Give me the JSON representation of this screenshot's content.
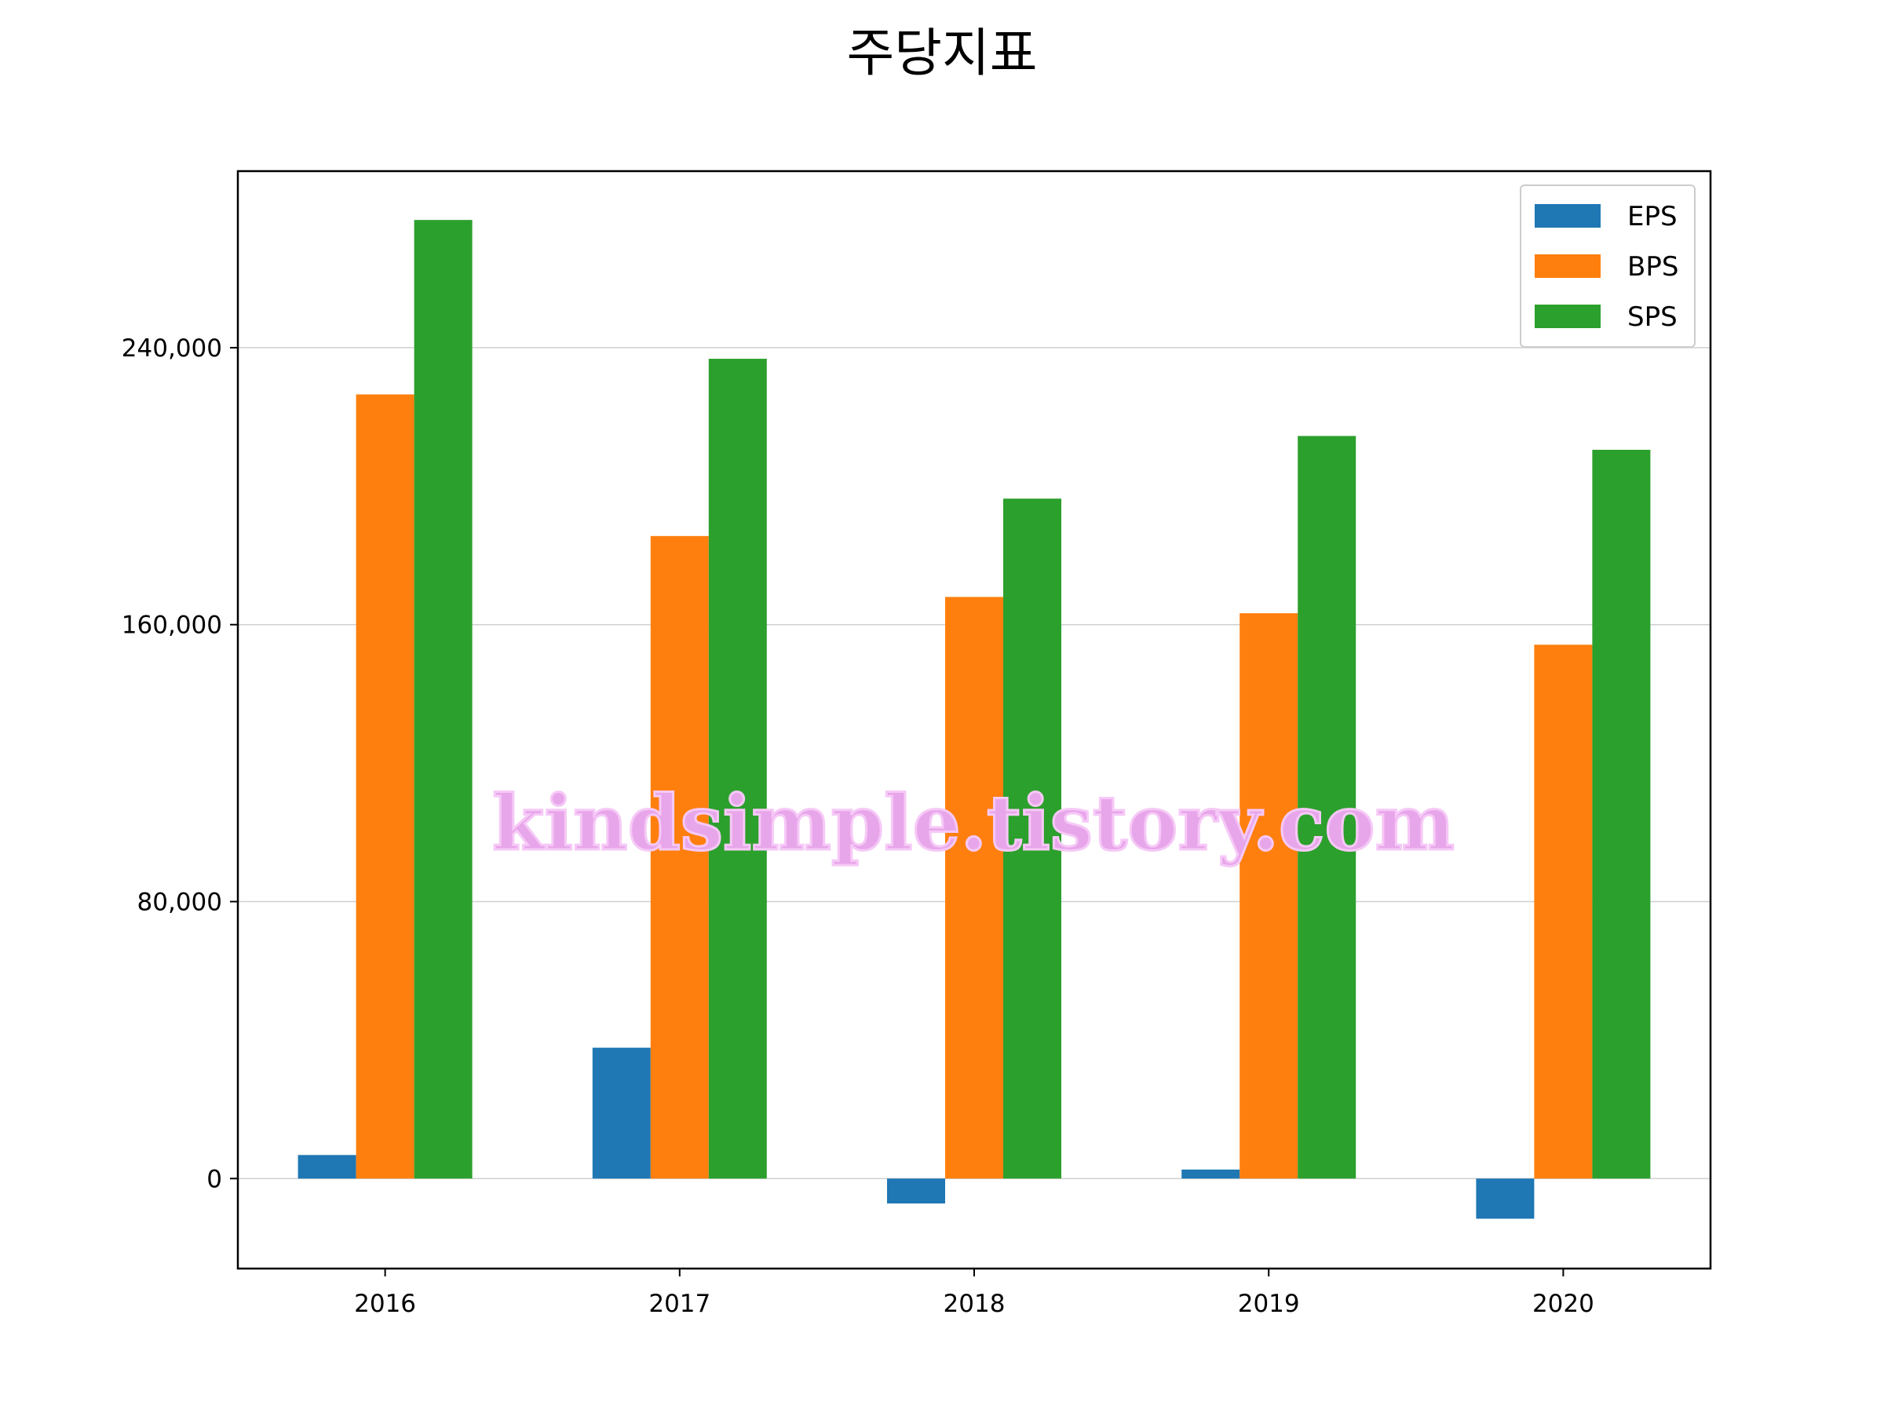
{
  "chart_data": {
    "type": "bar",
    "title": "주당지표",
    "xlabel": "",
    "ylabel": "",
    "categories": [
      "2016",
      "2017",
      "2018",
      "2019",
      "2020"
    ],
    "series": [
      {
        "name": "EPS",
        "color": "#1f77b4",
        "values": [
          6800,
          37800,
          -7200,
          2600,
          -11600
        ]
      },
      {
        "name": "BPS",
        "color": "#ff7f0e",
        "values": [
          226500,
          185600,
          168000,
          163300,
          154200
        ]
      },
      {
        "name": "SPS",
        "color": "#2ca02c",
        "values": [
          276900,
          236800,
          196400,
          214500,
          210500
        ]
      }
    ],
    "ylim": [
      -26000,
      291000
    ],
    "yticks": [
      0,
      80000,
      160000,
      240000
    ],
    "ytick_labels": [
      "0",
      "80,000",
      "160,000",
      "240,000"
    ],
    "grid": "y",
    "legend": "top-right"
  },
  "watermark": "kindsimple.tistory.com"
}
